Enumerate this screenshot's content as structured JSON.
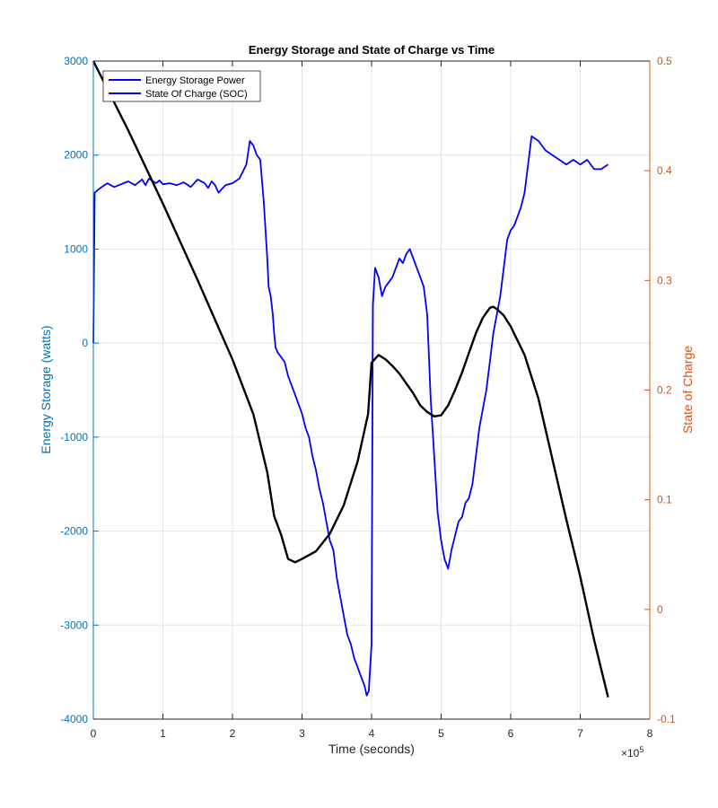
{
  "chart_data": {
    "type": "line",
    "title": "Energy Storage and State of Charge vs Time",
    "xlabel": "Time (seconds)",
    "x_exponent_label": "×10",
    "x_exponent_power": "5",
    "ylabel_left": "Energy Storage (watts)",
    "ylabel_right": "State of Charge",
    "xlim": [
      0,
      8
    ],
    "ylim_left": [
      -4000,
      3000
    ],
    "ylim_right": [
      -0.1,
      0.5
    ],
    "x_ticks": [
      "0",
      "1",
      "2",
      "3",
      "4",
      "5",
      "6",
      "7",
      "8"
    ],
    "y_left_ticks": [
      "3000",
      "2000",
      "1000",
      "0",
      "-1000",
      "-2000",
      "-3000",
      "-4000"
    ],
    "y_right_ticks": [
      "0.5",
      "0.4",
      "0.3",
      "0.2",
      "0.1",
      "0",
      "-0.1"
    ],
    "grid": true,
    "legend_position": "top-left",
    "colors": {
      "power": "#0000FF",
      "soc": "#000000",
      "left_axis": "#0072BD",
      "right_axis": "#D95319",
      "grid": "#E5E5E5"
    },
    "series": [
      {
        "name": "Energy Storage Power",
        "axis": "left",
        "x": [
          0,
          0.02,
          0.1,
          0.2,
          0.3,
          0.4,
          0.5,
          0.6,
          0.7,
          0.75,
          0.8,
          0.9,
          0.95,
          1.0,
          1.1,
          1.2,
          1.3,
          1.4,
          1.5,
          1.6,
          1.65,
          1.7,
          1.75,
          1.8,
          1.85,
          1.9,
          2.0,
          2.1,
          2.2,
          2.25,
          2.3,
          2.35,
          2.4,
          2.45,
          2.5,
          2.52,
          2.55,
          2.58,
          2.6,
          2.62,
          2.65,
          2.7,
          2.75,
          2.8,
          2.85,
          2.9,
          2.95,
          3.0,
          3.05,
          3.1,
          3.15,
          3.2,
          3.25,
          3.3,
          3.35,
          3.4,
          3.45,
          3.5,
          3.55,
          3.6,
          3.65,
          3.7,
          3.75,
          3.8,
          3.85,
          3.9,
          3.93,
          3.96,
          4.0,
          4.02,
          4.05,
          4.1,
          4.15,
          4.2,
          4.25,
          4.3,
          4.35,
          4.4,
          4.45,
          4.5,
          4.55,
          4.6,
          4.65,
          4.7,
          4.75,
          4.8,
          4.85,
          4.9,
          4.95,
          5.0,
          5.05,
          5.1,
          5.15,
          5.2,
          5.25,
          5.3,
          5.35,
          5.4,
          5.45,
          5.5,
          5.55,
          5.6,
          5.65,
          5.7,
          5.75,
          5.8,
          5.85,
          5.9,
          5.95,
          6.0,
          6.05,
          6.1,
          6.15,
          6.2,
          6.25,
          6.3,
          6.4,
          6.5,
          6.6,
          6.7,
          6.8,
          6.9,
          7.0,
          7.1,
          7.2,
          7.3,
          7.4
        ],
        "values": [
          0,
          1600,
          1650,
          1700,
          1660,
          1690,
          1720,
          1680,
          1740,
          1680,
          1750,
          1700,
          1730,
          1690,
          1700,
          1680,
          1710,
          1660,
          1740,
          1700,
          1650,
          1720,
          1680,
          1600,
          1640,
          1680,
          1700,
          1750,
          1900,
          2150,
          2100,
          2000,
          1950,
          1500,
          900,
          600,
          500,
          300,
          100,
          -50,
          -100,
          -150,
          -200,
          -350,
          -450,
          -550,
          -650,
          -750,
          -900,
          -1000,
          -1200,
          -1350,
          -1550,
          -1700,
          -1900,
          -2100,
          -2200,
          -2500,
          -2700,
          -2900,
          -3100,
          -3200,
          -3350,
          -3450,
          -3550,
          -3650,
          -3750,
          -3700,
          -3200,
          400,
          800,
          700,
          500,
          600,
          650,
          700,
          800,
          900,
          850,
          950,
          1000,
          900,
          800,
          700,
          600,
          300,
          -600,
          -1200,
          -1800,
          -2100,
          -2300,
          -2400,
          -2200,
          -2050,
          -1900,
          -1850,
          -1700,
          -1650,
          -1500,
          -1200,
          -900,
          -700,
          -500,
          -200,
          100,
          300,
          500,
          800,
          1100,
          1200,
          1250,
          1350,
          1450,
          1600,
          1900,
          2200,
          2150,
          2050,
          2000,
          1950,
          1900,
          1950,
          1900,
          1950,
          1850,
          1850,
          1900
        ]
      },
      {
        "name": "State Of Charge (SOC)",
        "axis": "right",
        "x": [
          0,
          0.5,
          1.0,
          1.5,
          2.0,
          2.3,
          2.5,
          2.6,
          2.7,
          2.8,
          2.9,
          3.0,
          3.2,
          3.4,
          3.6,
          3.8,
          3.95,
          4.0,
          4.1,
          4.2,
          4.3,
          4.4,
          4.5,
          4.6,
          4.7,
          4.8,
          4.9,
          5.0,
          5.1,
          5.2,
          5.3,
          5.4,
          5.5,
          5.6,
          5.7,
          5.75,
          5.8,
          5.9,
          6.0,
          6.2,
          6.4,
          6.6,
          6.8,
          7.0,
          7.2,
          7.4
        ],
        "values": [
          0.5,
          0.437,
          0.37,
          0.3,
          0.228,
          0.178,
          0.125,
          0.085,
          0.068,
          0.046,
          0.043,
          0.046,
          0.053,
          0.069,
          0.095,
          0.135,
          0.178,
          0.225,
          0.232,
          0.228,
          0.222,
          0.215,
          0.206,
          0.197,
          0.186,
          0.18,
          0.176,
          0.177,
          0.186,
          0.2,
          0.216,
          0.234,
          0.252,
          0.266,
          0.275,
          0.276,
          0.274,
          0.268,
          0.258,
          0.232,
          0.192,
          0.137,
          0.082,
          0.03,
          -0.028,
          -0.08
        ]
      }
    ]
  }
}
